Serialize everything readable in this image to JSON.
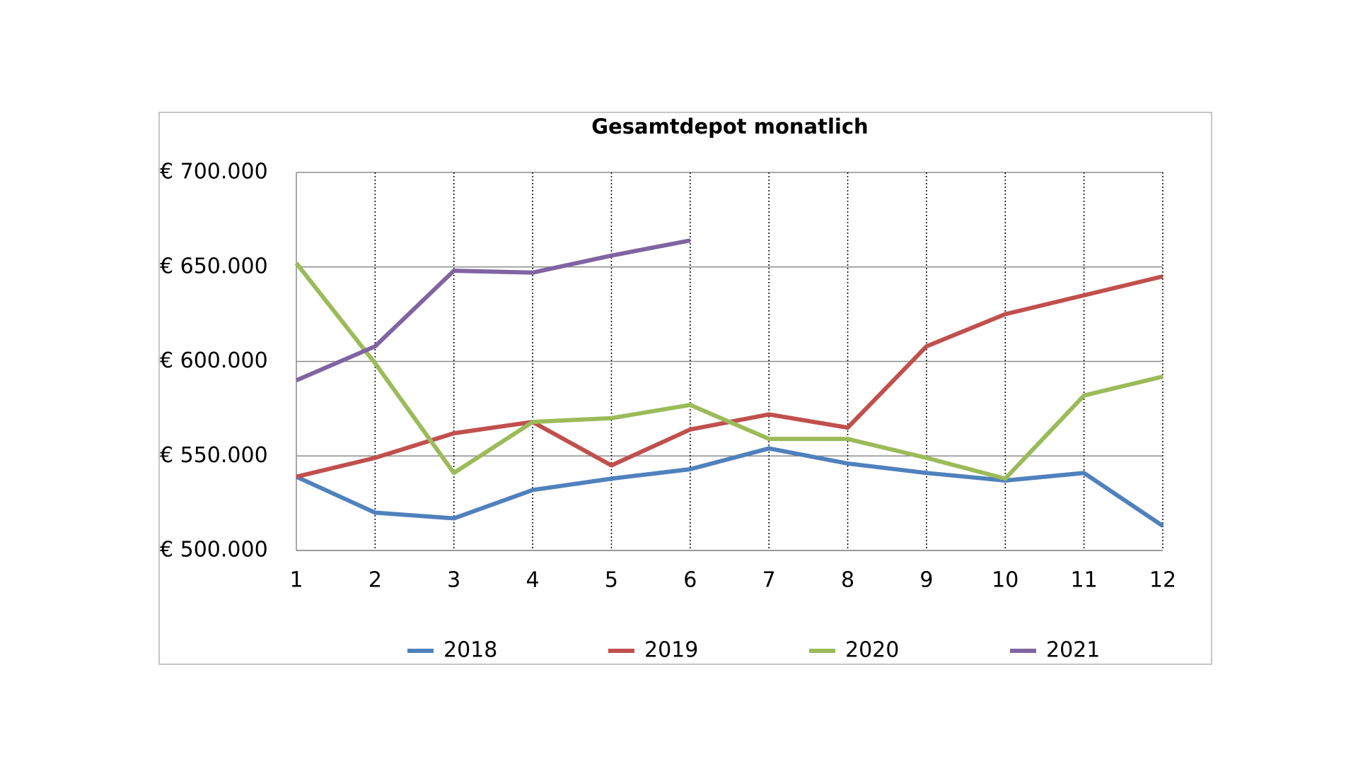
{
  "chart_data": {
    "type": "line",
    "title": "Gesamtdepot monatlich",
    "x": [
      1,
      2,
      3,
      4,
      5,
      6,
      7,
      8,
      9,
      10,
      11,
      12
    ],
    "xlim": [
      1,
      12
    ],
    "xticks": [
      1,
      2,
      3,
      4,
      5,
      6,
      7,
      8,
      9,
      10,
      11,
      12
    ],
    "ylim": [
      500000,
      700000
    ],
    "yticks": [
      {
        "value": 500000,
        "label": "€ 500.000"
      },
      {
        "value": 550000,
        "label": "€ 550.000"
      },
      {
        "value": 600000,
        "label": "€ 600.000"
      },
      {
        "value": 650000,
        "label": "€ 650.000"
      },
      {
        "value": 700000,
        "label": "€ 700.000"
      }
    ],
    "grid": true,
    "legend": "bottom",
    "series": [
      {
        "name": "2018",
        "color": "#4f81bd",
        "values": [
          539000,
          520000,
          517000,
          532000,
          538000,
          543000,
          554000,
          546000,
          541000,
          537000,
          541000,
          513000
        ]
      },
      {
        "name": "2019",
        "color": "#c0504d",
        "values": [
          539000,
          549000,
          562000,
          568000,
          545000,
          564000,
          572000,
          565000,
          608000,
          625000,
          635000,
          645000
        ]
      },
      {
        "name": "2020",
        "color": "#9bbb59",
        "values": [
          652000,
          599000,
          541000,
          568000,
          570000,
          577000,
          559000,
          559000,
          549000,
          538000,
          582000,
          592000
        ]
      },
      {
        "name": "2021",
        "color": "#8064a2",
        "values": [
          590000,
          608000,
          648000,
          647000,
          656000,
          664000,
          null,
          null,
          null,
          null,
          null,
          null
        ]
      }
    ]
  }
}
